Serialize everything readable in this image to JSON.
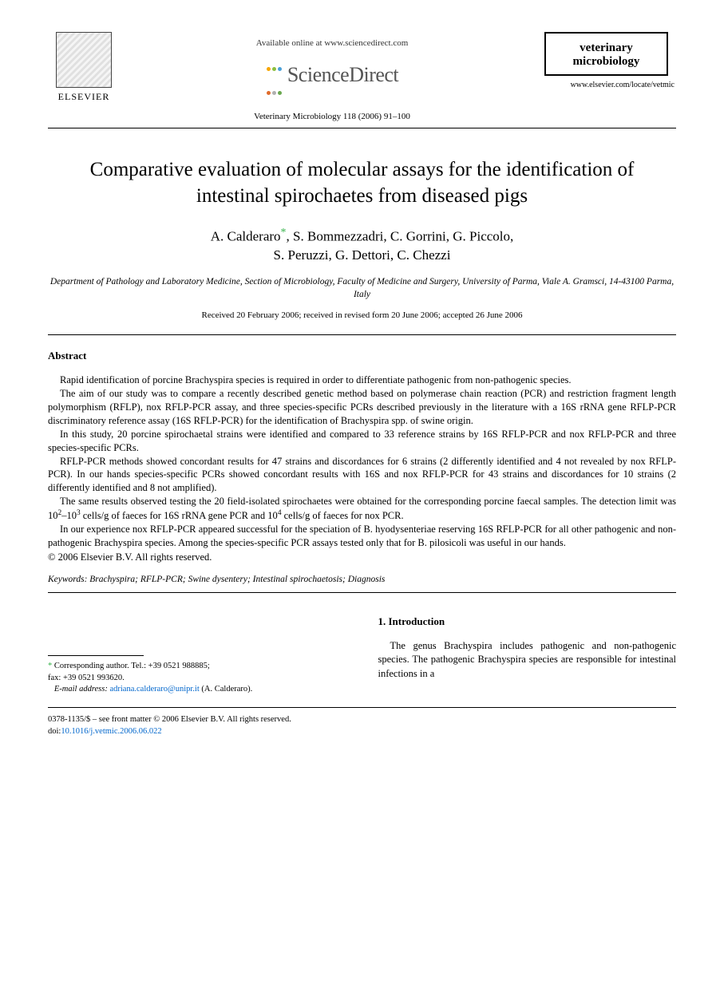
{
  "header": {
    "elsevier_label": "ELSEVIER",
    "available_online": "Available online at www.sciencedirect.com",
    "sciencedirect_label": "ScienceDirect",
    "sd_dot_colors": [
      "#f7a600",
      "#8bbf3f",
      "#4aa0d8",
      "#e06c2b",
      "#b0b0b0",
      "#6aa84f"
    ],
    "citation": "Veterinary Microbiology 118 (2006) 91–100",
    "journal_box_line1": "veterinary",
    "journal_box_line2": "microbiology",
    "journal_url": "www.elsevier.com/locate/vetmic"
  },
  "title": "Comparative evaluation of molecular assays for the identification of intestinal spirochaetes from diseased pigs",
  "authors_line1": "A. Calderaro",
  "authors_line1b": ", S. Bommezzadri, C. Gorrini, G. Piccolo,",
  "authors_line2": "S. Peruzzi, G. Dettori, C. Chezzi",
  "affiliation": "Department of Pathology and Laboratory Medicine, Section of Microbiology, Faculty of Medicine and Surgery, University of Parma, Viale A. Gramsci, 14-43100 Parma, Italy",
  "dates": "Received 20 February 2006; received in revised form 20 June 2006; accepted 26 June 2006",
  "abstract": {
    "heading": "Abstract",
    "p1": "Rapid identification of porcine Brachyspira species is required in order to differentiate pathogenic from non-pathogenic species.",
    "p2": "The aim of our study was to compare a recently described genetic method based on polymerase chain reaction (PCR) and restriction fragment length polymorphism (RFLP), nox RFLP-PCR assay, and three species-specific PCRs described previously in the literature with a 16S rRNA gene RFLP-PCR discriminatory reference assay (16S RFLP-PCR) for the identification of Brachyspira spp. of swine origin.",
    "p3": "In this study, 20 porcine spirochaetal strains were identified and compared to 33 reference strains by 16S RFLP-PCR and nox RFLP-PCR and three species-specific PCRs.",
    "p4": "RFLP-PCR methods showed concordant results for 47 strains and discordances for 6 strains (2 differently identified and 4 not revealed by nox RFLP-PCR). In our hands species-specific PCRs showed concordant results with 16S and nox RFLP-PCR for 43 strains and discordances for 10 strains (2 differently identified and 8 not amplified).",
    "p5_a": "The same results observed testing the 20 field-isolated spirochaetes were obtained for the corresponding porcine faecal samples. The detection limit was 10",
    "p5_exp1": "2",
    "p5_b": "–10",
    "p5_exp2": "3",
    "p5_c": " cells/g of faeces for 16S rRNA gene PCR and 10",
    "p5_exp3": "4",
    "p5_d": " cells/g of faeces for nox PCR.",
    "p6": "In our experience nox RFLP-PCR appeared successful for the speciation of B. hyodysenteriae reserving 16S RFLP-PCR for all other pathogenic and non-pathogenic Brachyspira species. Among the species-specific PCR assays tested only that for B. pilosicoli was useful in our hands.",
    "copyright": "© 2006 Elsevier B.V. All rights reserved."
  },
  "keywords": {
    "label": "Keywords:",
    "text": " Brachyspira; RFLP-PCR; Swine dysentery; Intestinal spirochaetosis; Diagnosis"
  },
  "introduction": {
    "heading": "1.  Introduction",
    "p1": "The genus Brachyspira includes pathogenic and non-pathogenic species. The pathogenic Brachyspira species are responsible for intestinal infections in a"
  },
  "footnote": {
    "corr_label": "Corresponding author. Tel.: +39 0521 988885;",
    "fax": "fax: +39 0521 993620.",
    "email_label": "E-mail address:",
    "email": "adriana.calderaro@unipr.it",
    "email_paren": " (A. Calderaro)."
  },
  "footer": {
    "line1": "0378-1135/$ – see front matter © 2006 Elsevier B.V. All rights reserved.",
    "doi_label": "doi:",
    "doi": "10.1016/j.vetmic.2006.06.022"
  },
  "colors": {
    "link": "#0066cc",
    "star": "#36b24a",
    "text": "#000000",
    "background": "#ffffff"
  },
  "typography": {
    "title_fontsize": 25,
    "authors_fontsize": 17,
    "body_fontsize": 12.5,
    "footnote_fontsize": 10.5,
    "font_family": "Times New Roman"
  }
}
